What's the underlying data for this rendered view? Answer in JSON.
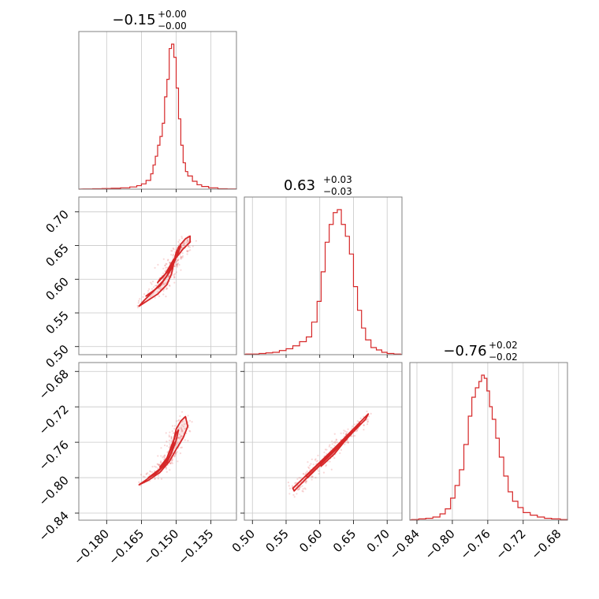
{
  "chart_data": {
    "type": "corner",
    "color": "#d62728",
    "parameters": [
      {
        "title": {
          "main": "−0.15",
          "plus": "+0.00",
          "minus": "−0.00"
        },
        "range": [
          -0.192,
          -0.124
        ],
        "ticks": [
          -0.18,
          -0.165,
          -0.15,
          -0.135
        ],
        "tick_labels": [
          "−0.180",
          "−0.165",
          "−0.150",
          "−0.135"
        ],
        "histogram": {
          "bins": [
            -0.19,
            -0.186,
            -0.182,
            -0.178,
            -0.174,
            -0.17,
            -0.167,
            -0.165,
            -0.163,
            -0.161,
            -0.16,
            -0.159,
            -0.158,
            -0.157,
            -0.156,
            -0.155,
            -0.154,
            -0.153,
            -0.152,
            -0.151,
            -0.15,
            -0.149,
            -0.148,
            -0.147,
            -0.146,
            -0.145,
            -0.143,
            -0.141,
            -0.139,
            -0.136,
            -0.132,
            -0.128
          ],
          "counts": [
            0.5,
            1,
            1.5,
            2,
            3,
            5,
            8,
            12,
            20,
            35,
            55,
            75,
            100,
            120,
            150,
            210,
            250,
            320,
            330,
            300,
            230,
            160,
            100,
            60,
            40,
            30,
            18,
            10,
            6,
            3,
            1,
            0.5
          ]
        }
      },
      {
        "title": {
          "main": "0.63",
          "plus": "+0.03",
          "minus": "−0.03"
        },
        "range": [
          0.488,
          0.722
        ],
        "ticks": [
          0.5,
          0.55,
          0.6,
          0.65,
          0.7
        ],
        "tick_labels": [
          "0.50",
          "0.55",
          "0.60",
          "0.65",
          "0.70"
        ],
        "histogram": {
          "bins": [
            0.49,
            0.5,
            0.51,
            0.52,
            0.53,
            0.54,
            0.55,
            0.56,
            0.57,
            0.58,
            0.588,
            0.596,
            0.602,
            0.608,
            0.614,
            0.62,
            0.626,
            0.632,
            0.638,
            0.644,
            0.65,
            0.656,
            0.662,
            0.668,
            0.676,
            0.684,
            0.692,
            0.7,
            0.71
          ],
          "counts": [
            1,
            1,
            2,
            3,
            4,
            7,
            10,
            15,
            22,
            30,
            55,
            90,
            140,
            190,
            220,
            240,
            245,
            220,
            200,
            170,
            115,
            75,
            45,
            25,
            12,
            8,
            4,
            2,
            1
          ]
        }
      },
      {
        "title": {
          "main": "−0.76",
          "plus": "+0.02",
          "minus": "−0.02"
        },
        "range": [
          -0.848,
          -0.67
        ],
        "ticks": [
          -0.84,
          -0.8,
          -0.76,
          -0.72,
          -0.68
        ],
        "tick_labels": [
          "−0.84",
          "−0.80",
          "−0.76",
          "−0.72",
          "−0.68"
        ],
        "histogram": {
          "bins": [
            -0.846,
            -0.838,
            -0.83,
            -0.822,
            -0.814,
            -0.808,
            -0.802,
            -0.797,
            -0.792,
            -0.787,
            -0.782,
            -0.778,
            -0.774,
            -0.77,
            -0.767,
            -0.764,
            -0.761,
            -0.758,
            -0.755,
            -0.751,
            -0.747,
            -0.742,
            -0.737,
            -0.732,
            -0.726,
            -0.72,
            -0.712,
            -0.704,
            -0.696,
            -0.688,
            -0.678
          ],
          "counts": [
            1,
            2,
            3,
            5,
            10,
            18,
            35,
            55,
            80,
            120,
            165,
            195,
            210,
            220,
            230,
            225,
            205,
            180,
            160,
            130,
            100,
            70,
            45,
            30,
            20,
            12,
            8,
            5,
            3,
            2,
            1
          ]
        }
      }
    ],
    "pair_contours": [
      {
        "x_param": 0,
        "y_param": 1,
        "contour_levels": [
          {
            "level": "outer",
            "points": [
              [
                -0.166,
                0.56
              ],
              [
                -0.158,
                0.578
              ],
              [
                -0.154,
                0.592
              ],
              [
                -0.152,
                0.608
              ],
              [
                -0.151,
                0.625
              ],
              [
                -0.15,
                0.64
              ],
              [
                -0.148,
                0.652
              ],
              [
                -0.146,
                0.66
              ],
              [
                -0.144,
                0.664
              ],
              [
                -0.144,
                0.655
              ],
              [
                -0.147,
                0.645
              ],
              [
                -0.15,
                0.632
              ],
              [
                -0.152,
                0.616
              ],
              [
                -0.155,
                0.6
              ],
              [
                -0.159,
                0.585
              ],
              [
                -0.164,
                0.568
              ]
            ]
          },
          {
            "level": "middle",
            "points": [
              [
                -0.163,
                0.575
              ],
              [
                -0.157,
                0.59
              ],
              [
                -0.154,
                0.605
              ],
              [
                -0.152,
                0.62
              ],
              [
                -0.15,
                0.635
              ],
              [
                -0.149,
                0.648
              ],
              [
                -0.148,
                0.65
              ],
              [
                -0.149,
                0.64
              ],
              [
                -0.151,
                0.626
              ],
              [
                -0.153,
                0.61
              ],
              [
                -0.156,
                0.595
              ],
              [
                -0.16,
                0.582
              ]
            ]
          },
          {
            "level": "inner",
            "points": [
              [
                -0.158,
                0.595
              ],
              [
                -0.155,
                0.606
              ],
              [
                -0.153,
                0.618
              ],
              [
                -0.151,
                0.63
              ],
              [
                -0.152,
                0.622
              ],
              [
                -0.154,
                0.61
              ],
              [
                -0.157,
                0.6
              ]
            ]
          }
        ]
      },
      {
        "x_param": 0,
        "y_param": 2,
        "contour_levels": [
          {
            "level": "outer",
            "points": [
              [
                -0.166,
                -0.808
              ],
              [
                -0.16,
                -0.797
              ],
              [
                -0.155,
                -0.786
              ],
              [
                -0.153,
                -0.772
              ],
              [
                -0.151,
                -0.757
              ],
              [
                -0.15,
                -0.745
              ],
              [
                -0.148,
                -0.736
              ],
              [
                -0.146,
                -0.731
              ],
              [
                -0.145,
                -0.742
              ],
              [
                -0.147,
                -0.755
              ],
              [
                -0.15,
                -0.768
              ],
              [
                -0.153,
                -0.782
              ],
              [
                -0.157,
                -0.794
              ],
              [
                -0.162,
                -0.803
              ]
            ]
          },
          {
            "level": "middle",
            "points": [
              [
                -0.162,
                -0.8
              ],
              [
                -0.157,
                -0.79
              ],
              [
                -0.154,
                -0.778
              ],
              [
                -0.152,
                -0.764
              ],
              [
                -0.15,
                -0.75
              ],
              [
                -0.149,
                -0.746
              ],
              [
                -0.15,
                -0.758
              ],
              [
                -0.152,
                -0.772
              ],
              [
                -0.155,
                -0.786
              ],
              [
                -0.159,
                -0.796
              ]
            ]
          },
          {
            "level": "inner",
            "points": [
              [
                -0.157,
                -0.788
              ],
              [
                -0.154,
                -0.778
              ],
              [
                -0.152,
                -0.766
              ],
              [
                -0.151,
                -0.76
              ],
              [
                -0.152,
                -0.772
              ],
              [
                -0.154,
                -0.783
              ]
            ]
          }
        ]
      },
      {
        "x_param": 1,
        "y_param": 2,
        "contour_levels": [
          {
            "level": "outer",
            "points": [
              [
                0.56,
                -0.812
              ],
              [
                0.59,
                -0.79
              ],
              [
                0.62,
                -0.768
              ],
              [
                0.65,
                -0.745
              ],
              [
                0.672,
                -0.728
              ],
              [
                0.668,
                -0.734
              ],
              [
                0.645,
                -0.752
              ],
              [
                0.615,
                -0.775
              ],
              [
                0.585,
                -0.797
              ],
              [
                0.562,
                -0.815
              ]
            ]
          },
          {
            "level": "middle",
            "points": [
              [
                0.58,
                -0.798
              ],
              [
                0.61,
                -0.776
              ],
              [
                0.64,
                -0.754
              ],
              [
                0.66,
                -0.739
              ],
              [
                0.638,
                -0.758
              ],
              [
                0.608,
                -0.78
              ],
              [
                0.582,
                -0.8
              ]
            ]
          },
          {
            "level": "inner",
            "points": [
              [
                0.6,
                -0.784
              ],
              [
                0.62,
                -0.77
              ],
              [
                0.64,
                -0.756
              ],
              [
                0.622,
                -0.773
              ],
              [
                0.602,
                -0.787
              ]
            ]
          }
        ]
      }
    ]
  }
}
